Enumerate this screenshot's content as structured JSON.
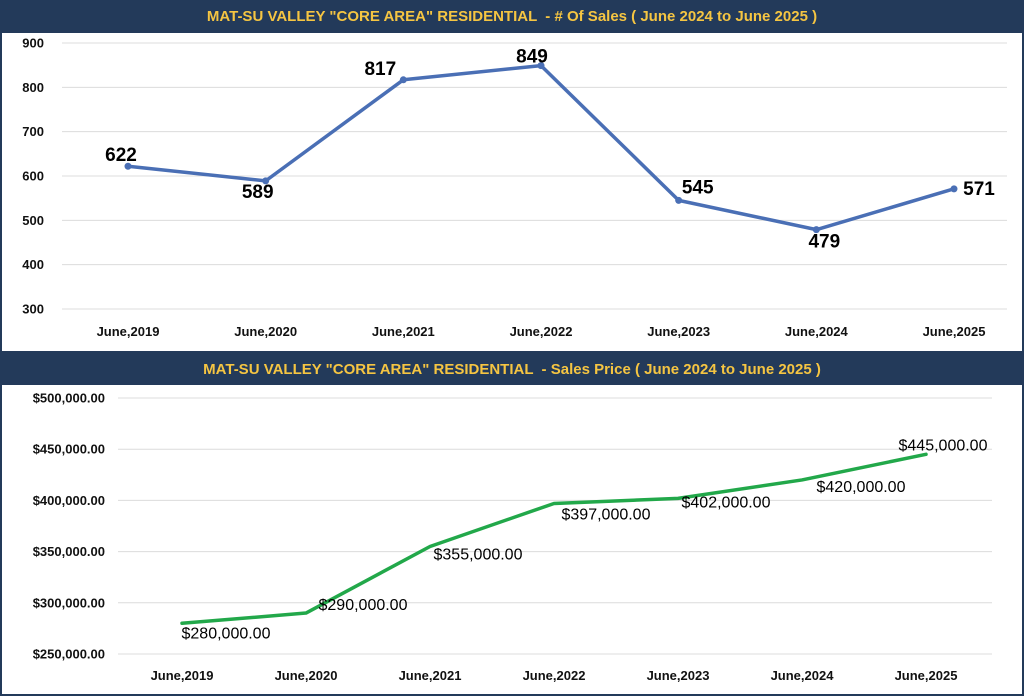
{
  "chart_data": [
    {
      "type": "line",
      "title": "MAT-SU VALLEY \"CORE AREA\" RESIDENTIAL  - # Of Sales ( June 2024 to June 2025 )",
      "categories": [
        "June,2019",
        "June,2020",
        "June,2021",
        "June,2022",
        "June,2023",
        "June,2024",
        "June,2025"
      ],
      "values": [
        622,
        589,
        817,
        849,
        545,
        479,
        571
      ],
      "value_labels": [
        "622",
        "589",
        "817",
        "849",
        "545",
        "479",
        "571"
      ],
      "ylim": [
        300,
        900
      ],
      "yticks": [
        300,
        400,
        500,
        600,
        700,
        800,
        900
      ],
      "ytick_labels": [
        "300",
        "400",
        "500",
        "600",
        "700",
        "800",
        "900"
      ],
      "grid": true,
      "line_color": "#4a6fb5",
      "title_color": "#f5c542",
      "title_bg": "#233a5a"
    },
    {
      "type": "line",
      "title": "MAT-SU VALLEY \"CORE AREA\" RESIDENTIAL  - Sales Price ( June 2024 to June 2025 )",
      "categories": [
        "June,2019",
        "June,2020",
        "June,2021",
        "June,2022",
        "June,2023",
        "June,2024",
        "June,2025"
      ],
      "values": [
        280000,
        290000,
        355000,
        397000,
        402000,
        420000,
        445000
      ],
      "value_labels": [
        "$280,000.00",
        "$290,000.00",
        "$355,000.00",
        "$397,000.00",
        "$402,000.00",
        "$420,000.00",
        "$445,000.00"
      ],
      "ylim": [
        250000,
        500000
      ],
      "yticks": [
        250000,
        300000,
        350000,
        400000,
        450000,
        500000
      ],
      "ytick_labels": [
        "$250,000.00",
        "$300,000.00",
        "$350,000.00",
        "$400,000.00",
        "$450,000.00",
        "$500,000.00"
      ],
      "grid": true,
      "line_color": "#22a84a",
      "title_color": "#f5c542",
      "title_bg": "#233a5a"
    }
  ]
}
